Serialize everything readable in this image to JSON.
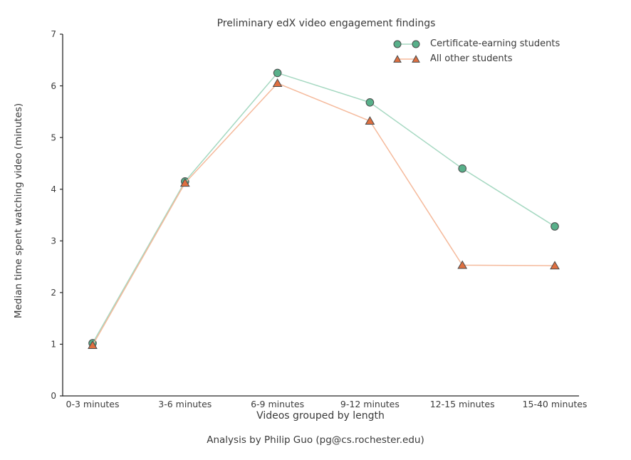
{
  "caption": "Analysis by Philip Guo (pg@cs.rochester.edu)",
  "chart_data": {
    "type": "line",
    "title": "Preliminary edX video engagement findings",
    "xlabel": "Videos grouped by length",
    "ylabel": "Median time spent watching video (minutes)",
    "categories": [
      "0-3 minutes",
      "3-6 minutes",
      "6-9 minutes",
      "9-12 minutes",
      "12-15 minutes",
      "15-40 minutes"
    ],
    "series": [
      {
        "name": "Certificate-earning students",
        "marker": "circle",
        "values": [
          1.02,
          4.15,
          6.25,
          5.68,
          4.4,
          3.28
        ],
        "marker_color": "#58b08a",
        "line_color": "#a5d8c1",
        "edge_color": "#4a4a4a"
      },
      {
        "name": "All other students",
        "marker": "triangle",
        "values": [
          0.98,
          4.12,
          6.05,
          5.32,
          2.53,
          2.52
        ],
        "marker_color": "#df6f40",
        "line_color": "#f5ba9c",
        "edge_color": "#4a4a4a"
      }
    ],
    "ylim": [
      0,
      7
    ],
    "yticks": [
      0,
      1,
      2,
      3,
      4,
      5,
      6,
      7
    ],
    "grid": false,
    "legend_position": "upper right",
    "axis_color": "#262626",
    "text_color": "#3c3c3c"
  }
}
